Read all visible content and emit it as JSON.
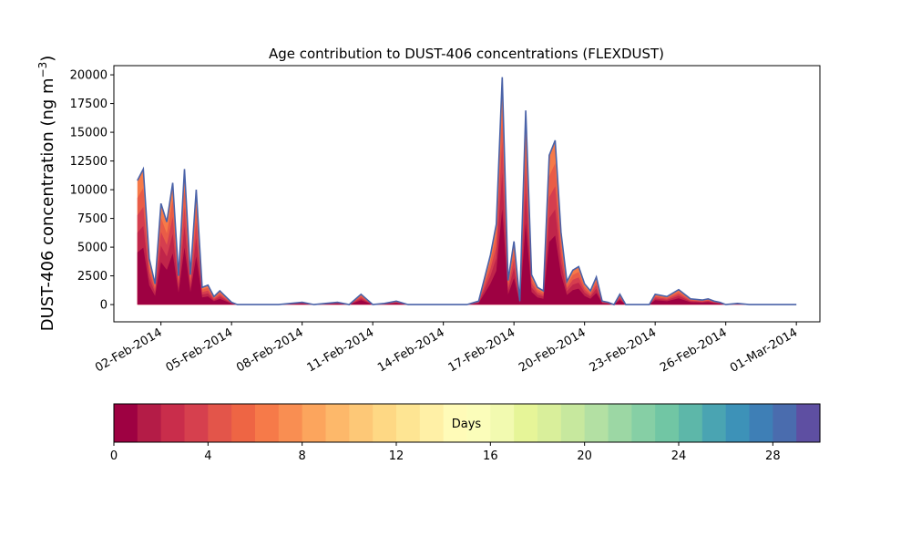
{
  "chart_data": {
    "type": "area",
    "title": "Age contribution to DUST-406 concentrations (FLEXDUST)",
    "ylabel": "DUST-406 concentration (ng m",
    "ylabel_sup": "−3",
    "ylabel_close": ")",
    "xlabel": "",
    "ylim": [
      -1500,
      20800
    ],
    "xlim": [
      "2014-01-31",
      "2014-03-02"
    ],
    "yticks": [
      0,
      2500,
      5000,
      7500,
      10000,
      12500,
      15000,
      17500,
      20000
    ],
    "xticks": [
      "02-Feb-2014",
      "05-Feb-2014",
      "08-Feb-2014",
      "11-Feb-2014",
      "14-Feb-2014",
      "17-Feb-2014",
      "20-Feb-2014",
      "23-Feb-2014",
      "26-Feb-2014",
      "01-Mar-2014"
    ],
    "stack_layers": [
      {
        "age_days": "0-1",
        "color": "#9e0142"
      },
      {
        "age_days": "1-2",
        "color": "#c0254a"
      },
      {
        "age_days": "2-4",
        "color": "#d53e4f"
      },
      {
        "age_days": "4-6",
        "color": "#e95c47"
      },
      {
        "age_days": "6-8",
        "color": "#f67a49"
      }
    ],
    "total_line_color": "#4a62a8",
    "total_series": {
      "name": "total",
      "dates": [
        "2014-02-01",
        "2014-02-01T06",
        "2014-02-01T12",
        "2014-02-01T18",
        "2014-02-02",
        "2014-02-02T06",
        "2014-02-02T12",
        "2014-02-02T18",
        "2014-02-03",
        "2014-02-03T06",
        "2014-02-03T12",
        "2014-02-03T18",
        "2014-02-04",
        "2014-02-04T06",
        "2014-02-04T12",
        "2014-02-04T18",
        "2014-02-05",
        "2014-02-05T06",
        "2014-02-05T12",
        "2014-02-05T18",
        "2014-02-06",
        "2014-02-07",
        "2014-02-08",
        "2014-02-08T12",
        "2014-02-09",
        "2014-02-09T12",
        "2014-02-10",
        "2014-02-10T12",
        "2014-02-11",
        "2014-02-11T12",
        "2014-02-12",
        "2014-02-12T12",
        "2014-02-13",
        "2014-02-14",
        "2014-02-15",
        "2014-02-15T12",
        "2014-02-16",
        "2014-02-16T06",
        "2014-02-16T12",
        "2014-02-16T18",
        "2014-02-17",
        "2014-02-17T06",
        "2014-02-17T12",
        "2014-02-17T18",
        "2014-02-18",
        "2014-02-18T06",
        "2014-02-18T12",
        "2014-02-18T18",
        "2014-02-19",
        "2014-02-19T06",
        "2014-02-19T12",
        "2014-02-19T18",
        "2014-02-20",
        "2014-02-20T06",
        "2014-02-20T12",
        "2014-02-20T18",
        "2014-02-21",
        "2014-02-21T06",
        "2014-02-21T12",
        "2014-02-21T18",
        "2014-02-22",
        "2014-02-22T06",
        "2014-02-22T12",
        "2014-02-22T18",
        "2014-02-23",
        "2014-02-23T12",
        "2014-02-24",
        "2014-02-24T12",
        "2014-02-25",
        "2014-02-25T06",
        "2014-02-25T12",
        "2014-02-25T18",
        "2014-02-26",
        "2014-02-26T12",
        "2014-02-27",
        "2014-02-27T12",
        "2014-02-28",
        "2014-03-01"
      ],
      "values": [
        10800,
        11800,
        4000,
        1800,
        8800,
        7200,
        10600,
        2500,
        11800,
        2600,
        10000,
        1500,
        1700,
        700,
        1200,
        700,
        200,
        0,
        0,
        0,
        0,
        0,
        200,
        0,
        100,
        200,
        0,
        900,
        0,
        100,
        300,
        0,
        0,
        0,
        0,
        300,
        4300,
        7000,
        19800,
        2100,
        5500,
        300,
        16900,
        2600,
        1500,
        1200,
        13000,
        14300,
        6300,
        2000,
        3000,
        3300,
        1800,
        1200,
        2400,
        300,
        200,
        0,
        900,
        0,
        0,
        0,
        0,
        0,
        900,
        700,
        1300,
        500,
        400,
        500,
        300,
        200,
        0,
        100,
        0,
        0,
        0,
        0
      ]
    }
  },
  "colorbar": {
    "label": "Days",
    "range": [
      0,
      30
    ],
    "ticks": [
      "0",
      "4",
      "8",
      "12",
      "16",
      "20",
      "24",
      "28"
    ],
    "colors": [
      "#9e0142",
      "#b41c47",
      "#c92d4b",
      "#d6404e",
      "#e3554a",
      "#ee6544",
      "#f67a49",
      "#f98e52",
      "#fca55d",
      "#fdb86a",
      "#fdc877",
      "#fed884",
      "#fee593",
      "#fff0a6",
      "#fffbb8",
      "#fbfdba",
      "#f2fab0",
      "#e6f598",
      "#d9ef9b",
      "#c7e89e",
      "#b3e0a3",
      "#9cd7a4",
      "#86cfa5",
      "#71c6a4",
      "#5db7a9",
      "#4aa4b2",
      "#3d92b8",
      "#3e7fb6",
      "#4a6cae",
      "#5e4fa2"
    ]
  }
}
